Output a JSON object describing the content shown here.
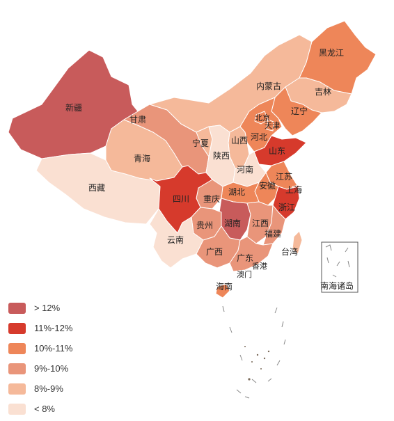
{
  "colors": {
    "gt12": "#c85b5b",
    "p11_12": "#d63a2c",
    "p10_11": "#ee8659",
    "p9_10": "#e9957a",
    "p8_9": "#f5b99a",
    "lt8": "#fae0d2",
    "border": "#ffffff",
    "sea_islands": "#7a6a5a"
  },
  "legend": [
    {
      "label": "> 12%",
      "color_key": "gt12"
    },
    {
      "label": "11%-12%",
      "color_key": "p11_12"
    },
    {
      "label": "10%-11%",
      "color_key": "p10_11"
    },
    {
      "label": "9%-10%",
      "color_key": "p9_10"
    },
    {
      "label": "8%-9%",
      "color_key": "p8_9"
    },
    {
      "label": "< 8%",
      "color_key": "lt8"
    }
  ],
  "provinces": {
    "xinjiang": "新疆",
    "xizang": "西藏",
    "qinghai": "青海",
    "gansu": "甘肃",
    "neimenggu": "内蒙古",
    "heilongjiang": "黑龙江",
    "jilin": "吉林",
    "liaoning": "辽宁",
    "beijing": "北京",
    "tianjin": "天津",
    "hebei": "河北",
    "shanxi": "山西",
    "ningxia": "宁夏",
    "shaanxi": "陕西",
    "shandong": "山东",
    "henan": "河南",
    "jiangsu": "江苏",
    "anhui": "安徽",
    "shanghai": "上海",
    "sichuan": "四川",
    "chongqing": "重庆",
    "hubei": "湖北",
    "zhejiang": "浙江",
    "hunan": "湖南",
    "jiangxi": "江西",
    "guizhou": "贵州",
    "fujian": "福建",
    "yunnan": "云南",
    "guangxi": "广西",
    "guangdong": "广东",
    "taiwan": "台湾",
    "xianggang": "香港",
    "aomen": "澳门",
    "hainan": "海南",
    "nanhai": "南海诸岛"
  }
}
